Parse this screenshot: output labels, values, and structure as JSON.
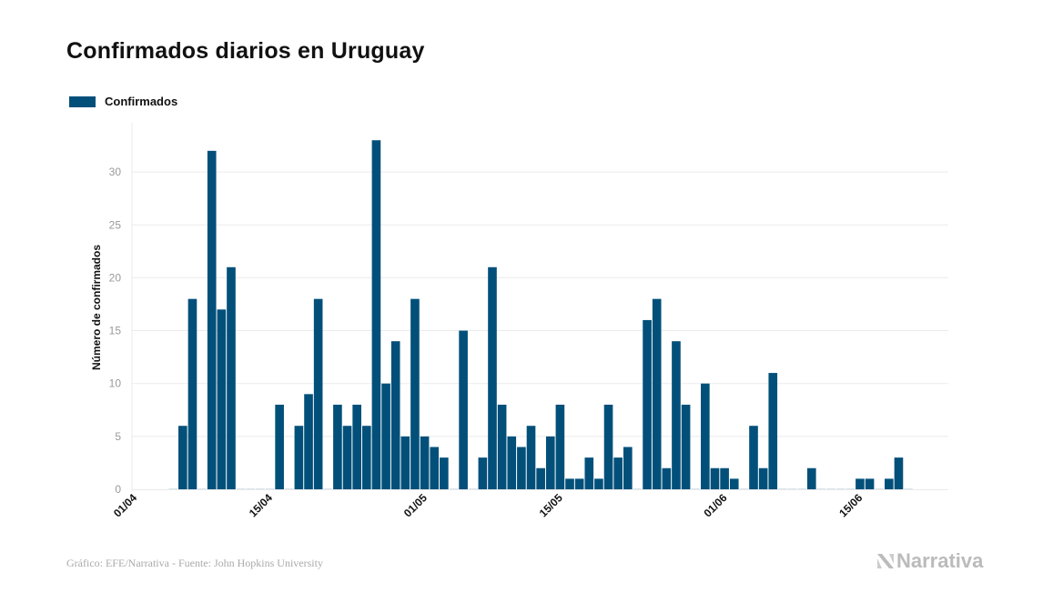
{
  "title": "Confirmados diarios en Uruguay",
  "legend": {
    "label": "Confirmados"
  },
  "footer": "Gráfico: EFE/Narrativa - Fuente: John Hopkins University",
  "logo": "Narrativa",
  "colors": {
    "bar": "#02507a",
    "grid": "#ebebeb",
    "tick": "#999999",
    "zero_bar": "#d6e3ea"
  },
  "chart_data": {
    "type": "bar",
    "title": "Confirmados diarios en Uruguay",
    "xlabel": "",
    "ylabel": "Número de confirmados",
    "ylim": [
      0,
      34
    ],
    "yticks": [
      0,
      5,
      10,
      15,
      20,
      25,
      30
    ],
    "xticks": [
      "01/04",
      "15/04",
      "01/05",
      "15/05",
      "01/06",
      "15/06"
    ],
    "grid": true,
    "legend_position": "top-left",
    "series": [
      {
        "name": "Confirmados"
      }
    ],
    "x": [
      "04/04",
      "05/04",
      "06/04",
      "07/04",
      "08/04",
      "09/04",
      "10/04",
      "11/04",
      "12/04",
      "13/04",
      "14/04",
      "15/04",
      "16/04",
      "17/04",
      "18/04",
      "19/04",
      "20/04",
      "21/04",
      "22/04",
      "23/04",
      "24/04",
      "25/04",
      "26/04",
      "27/04",
      "28/04",
      "29/04",
      "30/04",
      "01/05",
      "02/05",
      "03/05",
      "04/05",
      "05/05",
      "06/05",
      "07/05",
      "08/05",
      "09/05",
      "10/05",
      "11/05",
      "12/05",
      "13/05",
      "14/05",
      "15/05",
      "16/05",
      "17/05",
      "18/05",
      "19/05",
      "20/05",
      "21/05",
      "22/05",
      "23/05",
      "24/05",
      "25/05",
      "26/05",
      "27/05",
      "28/05",
      "29/05",
      "30/05",
      "31/05",
      "01/06",
      "02/06",
      "03/06",
      "04/06",
      "05/06",
      "06/06",
      "07/06",
      "08/06",
      "09/06",
      "10/06",
      "11/06",
      "12/06",
      "13/06",
      "14/06",
      "15/06",
      "16/06",
      "17/06",
      "18/06",
      "19/06"
    ],
    "values": [
      0,
      6,
      18,
      0,
      32,
      17,
      21,
      0,
      0,
      0,
      0,
      8,
      0,
      6,
      9,
      18,
      0,
      8,
      6,
      8,
      6,
      33,
      10,
      14,
      5,
      18,
      5,
      4,
      3,
      0,
      15,
      0,
      3,
      21,
      8,
      5,
      4,
      6,
      2,
      5,
      8,
      1,
      1,
      3,
      1,
      8,
      3,
      4,
      0,
      16,
      18,
      2,
      14,
      8,
      0,
      10,
      2,
      2,
      1,
      0,
      6,
      2,
      11,
      0,
      0,
      0,
      2,
      0,
      0,
      0,
      0,
      1,
      1,
      0,
      1,
      3,
      0
    ]
  }
}
